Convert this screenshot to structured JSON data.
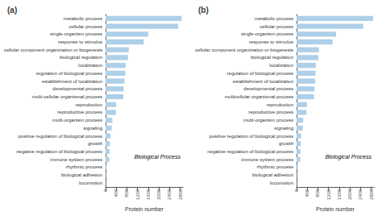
{
  "chart_data": [
    {
      "type": "bar",
      "orientation": "horizontal",
      "title": "(a)",
      "xlabel": "Protein number",
      "annotation": "Biological Process",
      "categories": [
        "metabolic process",
        "cellular process",
        "single-organism process",
        "response to stimulus",
        "cellular component organization or biogenesis",
        "biological regulation",
        "localization",
        "regulation of biological process",
        "establishment of localization",
        "developmental process",
        "multi-cellular organismal process",
        "reproduction",
        "reproductive process",
        "multi-organism process",
        "signaling",
        "positive regulation of biological process",
        "growth",
        "negative regulation of biological process",
        "immune system process",
        "rhythmic process",
        "biological adhesion",
        "locomotion"
      ],
      "values": [
        2850,
        2720,
        1600,
        1430,
        870,
        840,
        750,
        740,
        710,
        680,
        665,
        400,
        385,
        255,
        230,
        180,
        160,
        145,
        140,
        18,
        10,
        7
      ],
      "color": "#aecfe8",
      "xlim": [
        0,
        2900
      ],
      "xticks": [
        0,
        400,
        800,
        1200,
        1600,
        2000,
        2400,
        2800
      ],
      "grid": false
    },
    {
      "type": "bar",
      "orientation": "horizontal",
      "title": "(b)",
      "xlabel": "Protein number",
      "annotation": "Biological Process",
      "categories": [
        "metabolic process",
        "cellular process",
        "single-organism process",
        "response to stimulus",
        "cellular component organization or biogenesis",
        "biological regulation",
        "localization",
        "regulation of biological process",
        "establishment of localization",
        "developmental process",
        "multicellular organismal process",
        "reproduction",
        "reproductive process",
        "multi-organism process",
        "signaling",
        "positive regulation of biological process",
        "growth",
        "negative regulation of biological process",
        "immune system process",
        "rhythmic process",
        "biological adhesion",
        "locomotion"
      ],
      "values": [
        2870,
        2500,
        1480,
        1350,
        840,
        820,
        720,
        710,
        700,
        670,
        650,
        390,
        370,
        250,
        235,
        170,
        155,
        140,
        135,
        16,
        9,
        5
      ],
      "color": "#aecfe8",
      "xlim": [
        0,
        2900
      ],
      "xticks": [
        0,
        400,
        800,
        1200,
        1600,
        2000,
        2400,
        2800
      ],
      "grid": false
    }
  ]
}
